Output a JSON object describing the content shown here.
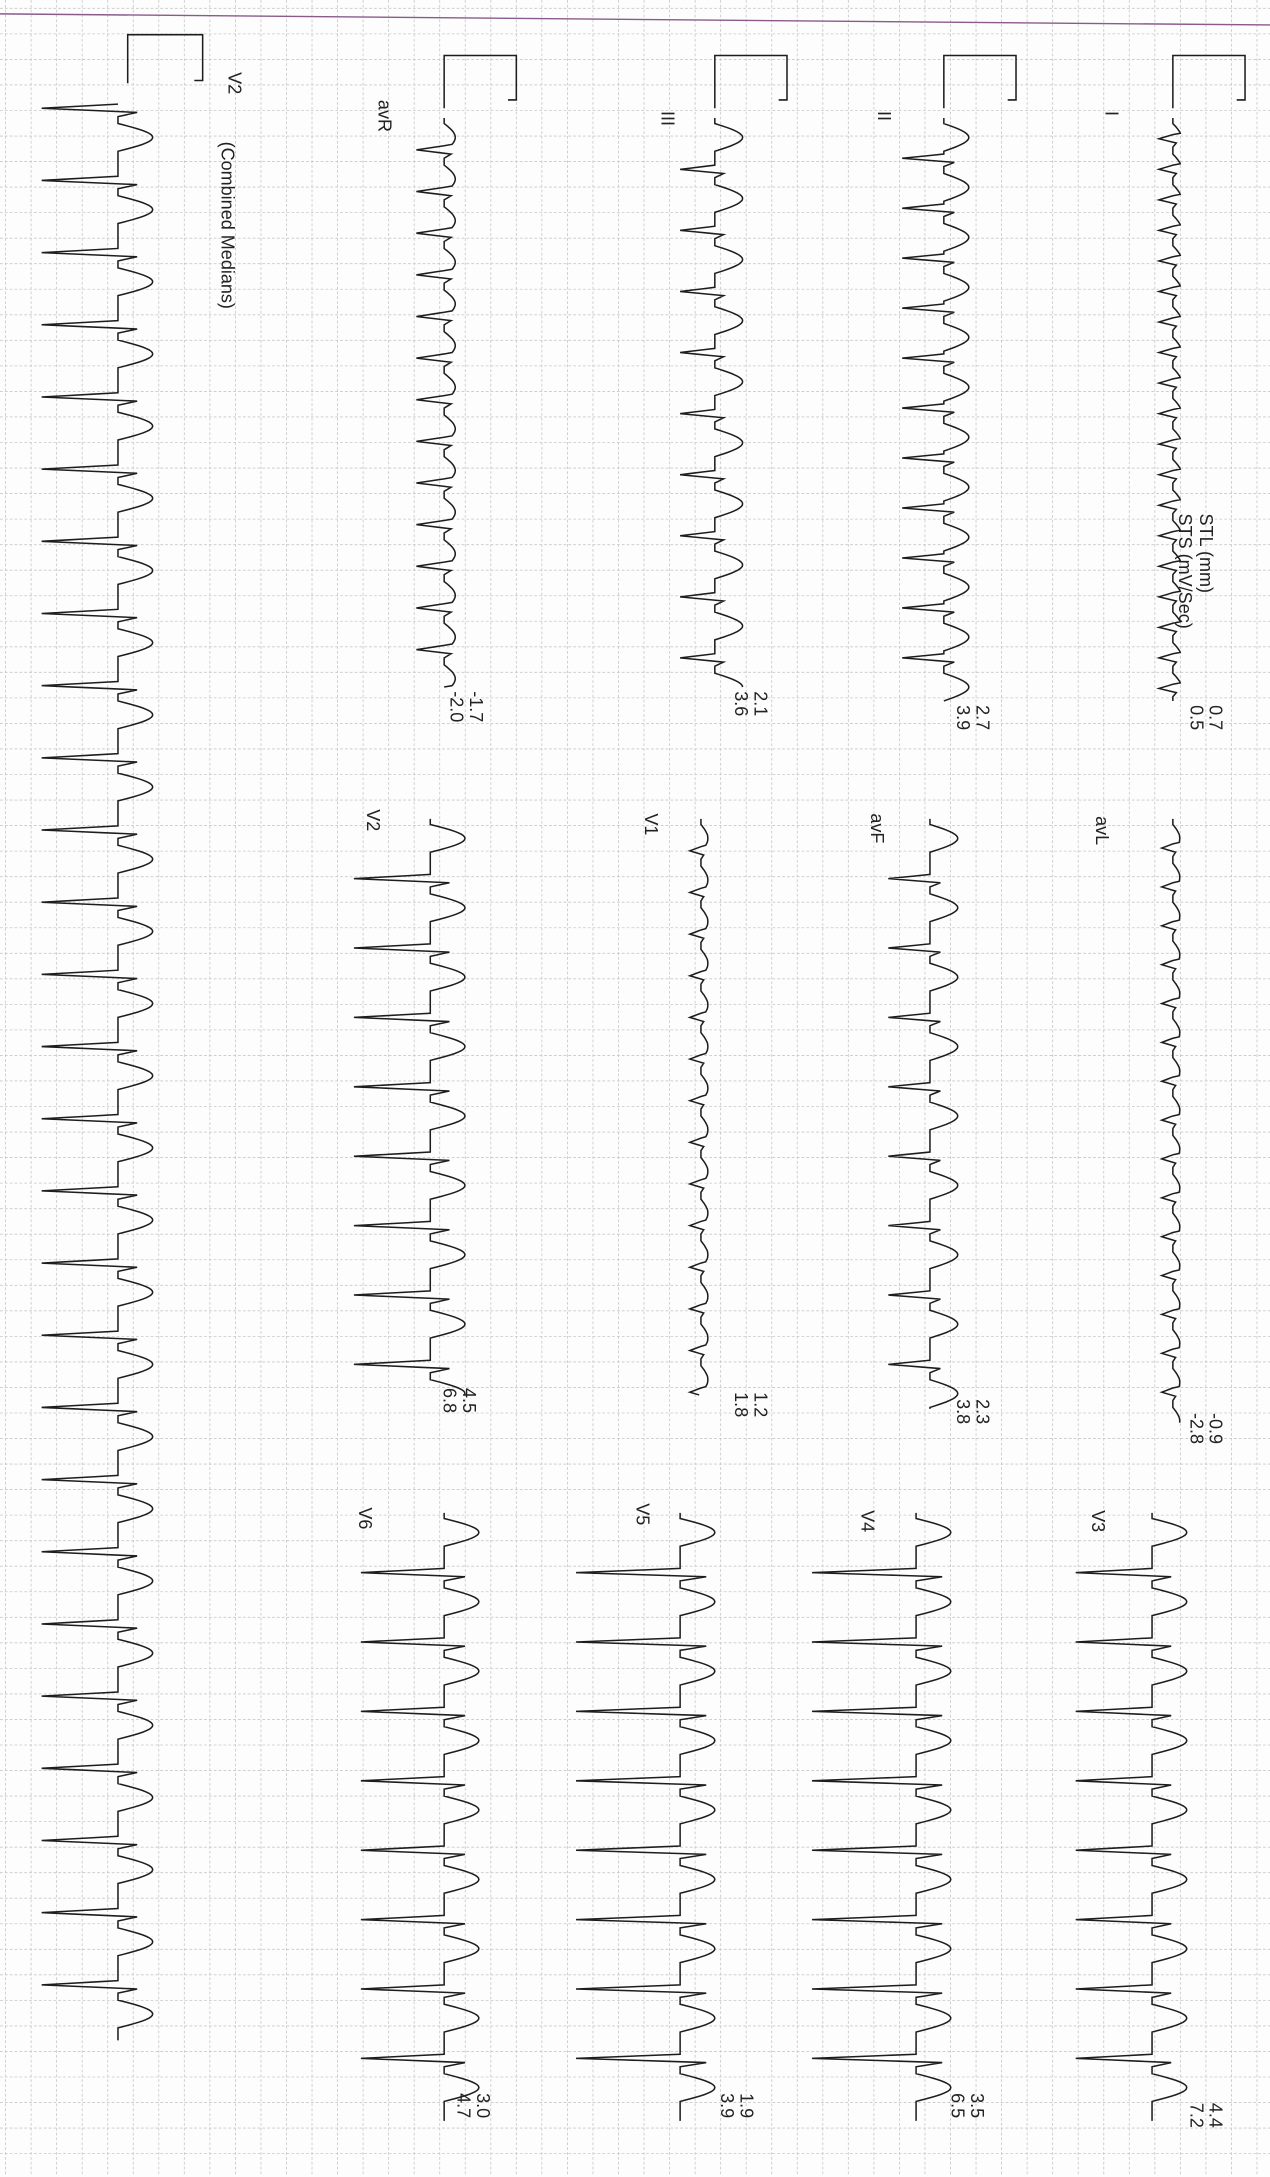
{
  "header": {
    "stl": "STL (mm)",
    "sts": "STS (mV/Sec)"
  },
  "leads": [
    {
      "label": "I",
      "stl": "0.7",
      "sts": "0.5"
    },
    {
      "label": "II",
      "stl": "2.7",
      "sts": "3.9"
    },
    {
      "label": "III",
      "stl": "2.1",
      "sts": "3.6"
    },
    {
      "label": "avR",
      "stl": "-1.7",
      "sts": "-2.0"
    },
    {
      "label": "avL",
      "stl": "-0.9",
      "sts": "-2.8"
    },
    {
      "label": "avF",
      "stl": "2.3",
      "sts": "3.8"
    },
    {
      "label": "V1",
      "stl": "1.2",
      "sts": "1.8"
    },
    {
      "label": "V2",
      "stl": "4.5",
      "sts": "6.8"
    },
    {
      "label": "V3",
      "stl": "4.4",
      "sts": "7.2"
    },
    {
      "label": "V4",
      "stl": "3.5",
      "sts": "6.5"
    },
    {
      "label": "V5",
      "stl": "1.9",
      "sts": "3.9"
    },
    {
      "label": "V6",
      "stl": "3.0",
      "sts": "4.7"
    }
  ],
  "rhythm": {
    "label": "V2",
    "note": "(Combined Medians)"
  }
}
